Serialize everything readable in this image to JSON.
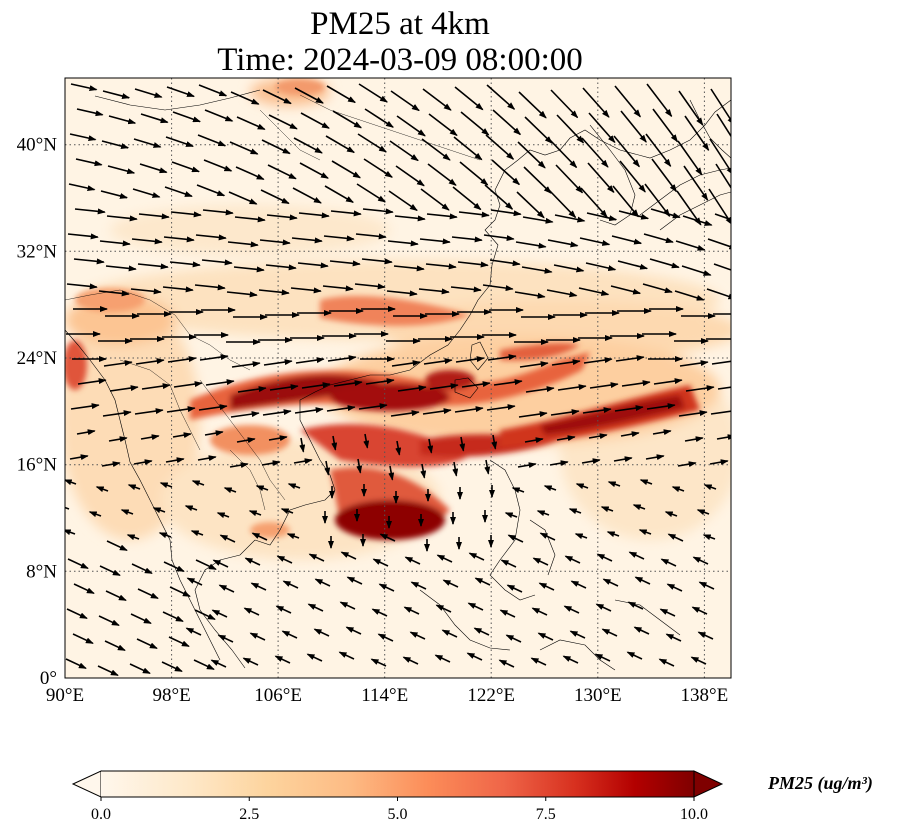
{
  "title": {
    "line1": "PM25 at 4km",
    "line2": "Time: 2024-03-09 08:00:00"
  },
  "map": {
    "projection": "plate-carree",
    "lon_range": [
      90,
      140
    ],
    "lat_range": [
      0,
      45
    ],
    "gridlines": "dotted",
    "lon_ticks": [
      "90°E",
      "98°E",
      "106°E",
      "114°E",
      "122°E",
      "130°E",
      "138°E"
    ],
    "lat_ticks": [
      "0°",
      "8°N",
      "16°N",
      "24°N",
      "32°N",
      "40°N"
    ],
    "field": "PM25",
    "vectors": "wind"
  },
  "colorbar": {
    "label": "PM25 (ug/m³)",
    "ticks": [
      "0.0",
      "2.5",
      "5.0",
      "7.5",
      "10.0"
    ],
    "range": [
      0,
      10
    ],
    "extend": "both",
    "cmap": "OrRd",
    "colors": [
      "#fff7ec",
      "#fee8c8",
      "#fdd49e",
      "#fdbb84",
      "#fc8d59",
      "#ef6548",
      "#d7301f",
      "#b30000",
      "#7f0000"
    ]
  }
}
